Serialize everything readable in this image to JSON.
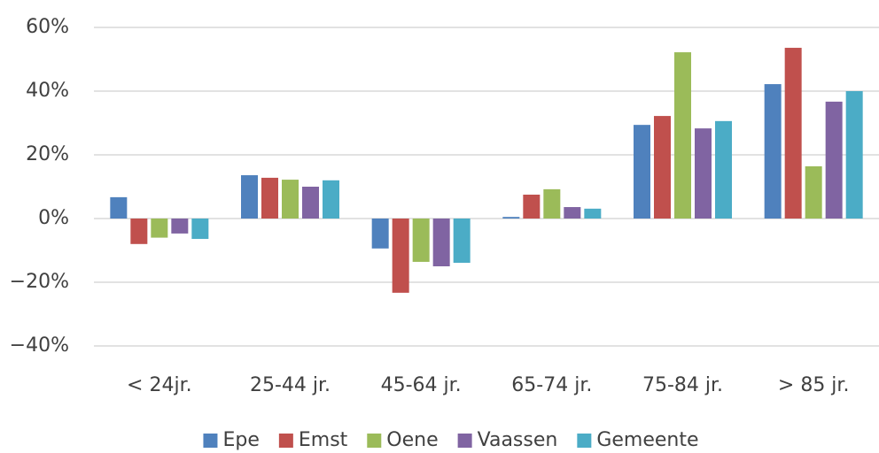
{
  "chart_data": {
    "type": "bar",
    "categories": [
      "< 24jr.",
      "25-44 jr.",
      "45-64 jr.",
      "65-74 jr.",
      "75-84 jr.",
      "> 85 jr."
    ],
    "series": [
      {
        "name": "Epe",
        "color": "#4f81bd",
        "values": [
          6.7,
          13.6,
          -9.4,
          0.5,
          29.4,
          42.2
        ]
      },
      {
        "name": "Emst",
        "color": "#c0504d",
        "values": [
          -8,
          12.8,
          -23.3,
          7.5,
          32.2,
          53.6
        ]
      },
      {
        "name": "Oene",
        "color": "#9bbb59",
        "values": [
          -6,
          12.2,
          -13.6,
          9.2,
          52.2,
          16.4
        ]
      },
      {
        "name": "Vaassen",
        "color": "#8064a2",
        "values": [
          -4.7,
          10,
          -15,
          3.6,
          28.3,
          36.7
        ]
      },
      {
        "name": "Gemeente",
        "color": "#4bacc6",
        "values": [
          -6.4,
          12,
          -13.9,
          3.1,
          30.6,
          40
        ]
      }
    ],
    "ylim": [
      -40,
      60
    ],
    "yticks": [
      {
        "value": -40,
        "label": "−40%"
      },
      {
        "value": -20,
        "label": "−20%"
      },
      {
        "value": 0,
        "label": "0%"
      },
      {
        "value": 20,
        "label": "20%"
      },
      {
        "value": 40,
        "label": "40%"
      },
      {
        "value": 60,
        "label": "60%"
      }
    ],
    "grid": true,
    "legend": "bottom"
  }
}
